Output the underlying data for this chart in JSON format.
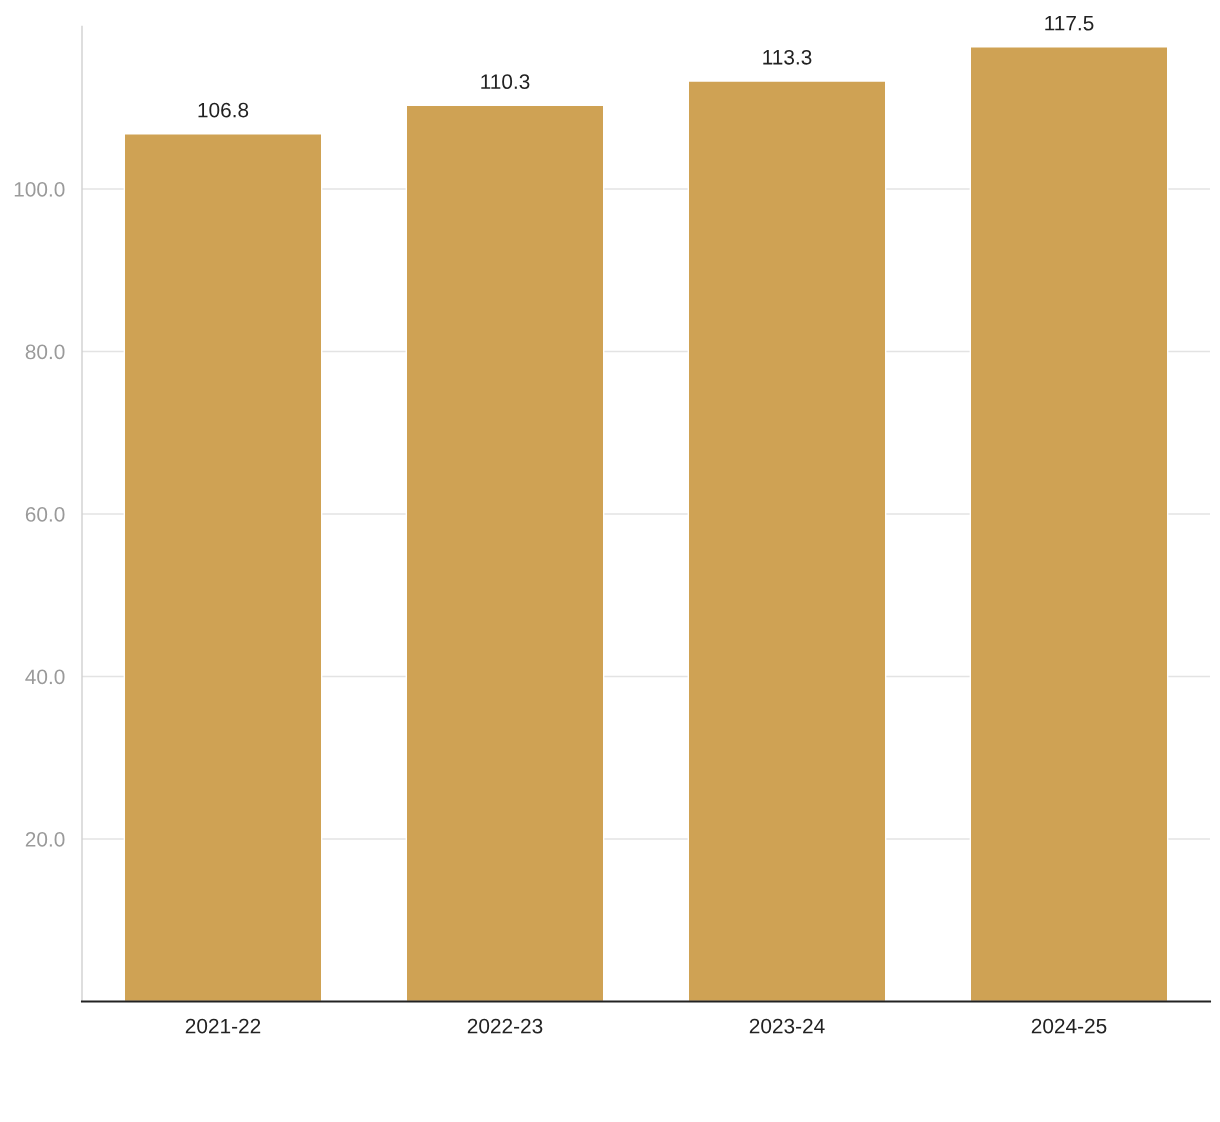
{
  "chart_data": {
    "type": "bar",
    "categories": [
      "2021-22",
      "2022-23",
      "2023-24",
      "2024-25"
    ],
    "values": [
      106.8,
      110.3,
      113.3,
      117.5
    ],
    "color": "#cfa254",
    "data_labels": true,
    "ylim": [
      0,
      120
    ],
    "yticks": [
      {
        "value": 20,
        "label": "20.0"
      },
      {
        "value": 40,
        "label": "40.0"
      },
      {
        "value": 60,
        "label": "60.0"
      },
      {
        "value": 80,
        "label": "80.0"
      },
      {
        "value": 100,
        "label": "100.0"
      }
    ],
    "grid": "y"
  }
}
